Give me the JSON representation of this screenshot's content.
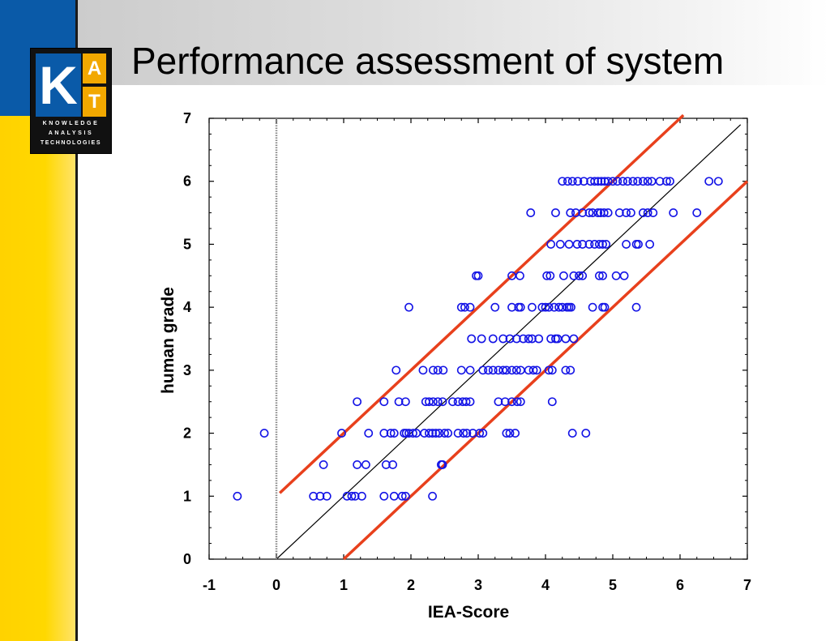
{
  "slide": {
    "title": "Performance assessment of system",
    "logo": {
      "letter_k": "K",
      "letter_a": "A",
      "letter_t": "T",
      "line1": "KNOWLEDGE",
      "line2": "ANALYSIS",
      "line3": "TECHNOLOGIES"
    },
    "colors": {
      "accent_blue": "#0a5aa8",
      "accent_yellow": "#ffd200",
      "marker_blue": "#1414e6",
      "band_red": "#e8401c"
    }
  },
  "chart_data": {
    "type": "scatter",
    "title": "",
    "xlabel": "IEA-Score",
    "ylabel": "human grade",
    "xlim": [
      -1,
      7
    ],
    "ylim": [
      0,
      7
    ],
    "xticks": [
      -1,
      0,
      1,
      2,
      3,
      4,
      5,
      6,
      7
    ],
    "yticks": [
      0,
      1,
      2,
      3,
      4,
      5,
      6,
      7
    ],
    "grid": false,
    "legend": "none",
    "reference_lines": [
      {
        "kind": "identity",
        "x": [
          0,
          6.9
        ],
        "y": [
          0,
          6.9
        ],
        "color": "#000000"
      },
      {
        "kind": "upper-band",
        "x": [
          0.05,
          6.05
        ],
        "y": [
          1.05,
          7.05
        ],
        "color": "#e8401c"
      },
      {
        "kind": "lower-band",
        "x": [
          1.0,
          7.0
        ],
        "y": [
          0.0,
          6.0
        ],
        "color": "#e8401c"
      },
      {
        "kind": "zero-marker",
        "x": [
          0,
          0
        ],
        "y": [
          0,
          7
        ],
        "color": "#888888"
      }
    ],
    "series": [
      {
        "marker": "open-circle",
        "color": "#1414e6",
        "points": [
          [
            -0.58,
            1
          ],
          [
            0.55,
            1
          ],
          [
            0.65,
            1
          ],
          [
            0.75,
            1
          ],
          [
            1.05,
            1
          ],
          [
            1.12,
            1
          ],
          [
            1.17,
            1
          ],
          [
            1.27,
            1
          ],
          [
            1.6,
            1
          ],
          [
            1.75,
            1
          ],
          [
            1.87,
            1
          ],
          [
            1.92,
            1
          ],
          [
            2.32,
            1
          ],
          [
            0.7,
            1.5
          ],
          [
            1.2,
            1.5
          ],
          [
            1.33,
            1.5
          ],
          [
            1.63,
            1.5
          ],
          [
            1.73,
            1.5
          ],
          [
            2.45,
            1.5
          ],
          [
            2.47,
            1.5
          ],
          [
            -0.18,
            2
          ],
          [
            0.97,
            2
          ],
          [
            1.37,
            2
          ],
          [
            1.6,
            2
          ],
          [
            1.7,
            2
          ],
          [
            1.75,
            2
          ],
          [
            1.9,
            2
          ],
          [
            1.93,
            2
          ],
          [
            1.97,
            2
          ],
          [
            2.03,
            2
          ],
          [
            2.08,
            2
          ],
          [
            2.2,
            2
          ],
          [
            2.27,
            2
          ],
          [
            2.32,
            2
          ],
          [
            2.37,
            2
          ],
          [
            2.42,
            2
          ],
          [
            2.5,
            2
          ],
          [
            2.55,
            2
          ],
          [
            2.7,
            2
          ],
          [
            2.78,
            2
          ],
          [
            2.83,
            2
          ],
          [
            2.92,
            2
          ],
          [
            3.02,
            2
          ],
          [
            3.07,
            2
          ],
          [
            3.42,
            2
          ],
          [
            3.47,
            2
          ],
          [
            3.55,
            2
          ],
          [
            4.4,
            2
          ],
          [
            4.6,
            2
          ],
          [
            1.2,
            2.5
          ],
          [
            1.6,
            2.5
          ],
          [
            1.82,
            2.5
          ],
          [
            1.92,
            2.5
          ],
          [
            2.22,
            2.5
          ],
          [
            2.27,
            2.5
          ],
          [
            2.33,
            2.5
          ],
          [
            2.4,
            2.5
          ],
          [
            2.47,
            2.5
          ],
          [
            2.62,
            2.5
          ],
          [
            2.7,
            2.5
          ],
          [
            2.77,
            2.5
          ],
          [
            2.82,
            2.5
          ],
          [
            2.88,
            2.5
          ],
          [
            3.3,
            2.5
          ],
          [
            3.4,
            2.5
          ],
          [
            3.5,
            2.5
          ],
          [
            3.58,
            2.5
          ],
          [
            3.63,
            2.5
          ],
          [
            4.1,
            2.5
          ],
          [
            1.78,
            3
          ],
          [
            2.18,
            3
          ],
          [
            2.33,
            3
          ],
          [
            2.4,
            3
          ],
          [
            2.48,
            3
          ],
          [
            2.75,
            3
          ],
          [
            2.88,
            3
          ],
          [
            3.07,
            3
          ],
          [
            3.15,
            3
          ],
          [
            3.22,
            3
          ],
          [
            3.3,
            3
          ],
          [
            3.37,
            3
          ],
          [
            3.42,
            3
          ],
          [
            3.5,
            3
          ],
          [
            3.57,
            3
          ],
          [
            3.63,
            3
          ],
          [
            3.75,
            3
          ],
          [
            3.82,
            3
          ],
          [
            3.87,
            3
          ],
          [
            4.05,
            3
          ],
          [
            4.1,
            3
          ],
          [
            4.3,
            3
          ],
          [
            4.37,
            3
          ],
          [
            2.9,
            3.5
          ],
          [
            3.05,
            3.5
          ],
          [
            3.22,
            3.5
          ],
          [
            3.37,
            3.5
          ],
          [
            3.47,
            3.5
          ],
          [
            3.57,
            3.5
          ],
          [
            3.67,
            3.5
          ],
          [
            3.75,
            3.5
          ],
          [
            3.8,
            3.5
          ],
          [
            3.9,
            3.5
          ],
          [
            4.08,
            3.5
          ],
          [
            4.15,
            3.5
          ],
          [
            4.18,
            3.5
          ],
          [
            4.3,
            3.5
          ],
          [
            4.42,
            3.5
          ],
          [
            1.97,
            4
          ],
          [
            2.75,
            4
          ],
          [
            2.8,
            4
          ],
          [
            2.88,
            4
          ],
          [
            3.25,
            4
          ],
          [
            3.5,
            4
          ],
          [
            3.6,
            4
          ],
          [
            3.63,
            4
          ],
          [
            3.8,
            4
          ],
          [
            3.95,
            4
          ],
          [
            4.0,
            4
          ],
          [
            4.05,
            4
          ],
          [
            4.13,
            4
          ],
          [
            4.2,
            4
          ],
          [
            4.25,
            4
          ],
          [
            4.32,
            4
          ],
          [
            4.35,
            4
          ],
          [
            4.38,
            4
          ],
          [
            4.7,
            4
          ],
          [
            4.85,
            4
          ],
          [
            4.88,
            4
          ],
          [
            5.35,
            4
          ],
          [
            2.97,
            4.5
          ],
          [
            3.0,
            4.5
          ],
          [
            3.5,
            4.5
          ],
          [
            3.62,
            4.5
          ],
          [
            4.02,
            4.5
          ],
          [
            4.07,
            4.5
          ],
          [
            4.27,
            4.5
          ],
          [
            4.42,
            4.5
          ],
          [
            4.5,
            4.5
          ],
          [
            4.55,
            4.5
          ],
          [
            4.8,
            4.5
          ],
          [
            4.85,
            4.5
          ],
          [
            5.05,
            4.5
          ],
          [
            5.17,
            4.5
          ],
          [
            4.08,
            5
          ],
          [
            4.22,
            5
          ],
          [
            4.35,
            5
          ],
          [
            4.47,
            5
          ],
          [
            4.55,
            5
          ],
          [
            4.65,
            5
          ],
          [
            4.73,
            5
          ],
          [
            4.8,
            5
          ],
          [
            4.85,
            5
          ],
          [
            4.9,
            5
          ],
          [
            5.2,
            5
          ],
          [
            5.35,
            5
          ],
          [
            5.38,
            5
          ],
          [
            5.55,
            5
          ],
          [
            3.78,
            5.5
          ],
          [
            4.15,
            5.5
          ],
          [
            4.37,
            5.5
          ],
          [
            4.45,
            5.5
          ],
          [
            4.55,
            5.5
          ],
          [
            4.65,
            5.5
          ],
          [
            4.7,
            5.5
          ],
          [
            4.78,
            5.5
          ],
          [
            4.82,
            5.5
          ],
          [
            4.87,
            5.5
          ],
          [
            4.93,
            5.5
          ],
          [
            5.1,
            5.5
          ],
          [
            5.2,
            5.5
          ],
          [
            5.27,
            5.5
          ],
          [
            5.45,
            5.5
          ],
          [
            5.52,
            5.5
          ],
          [
            5.6,
            5.5
          ],
          [
            5.9,
            5.5
          ],
          [
            6.25,
            5.5
          ],
          [
            4.25,
            6
          ],
          [
            4.33,
            6
          ],
          [
            4.4,
            6
          ],
          [
            4.48,
            6
          ],
          [
            4.57,
            6
          ],
          [
            4.67,
            6
          ],
          [
            4.73,
            6
          ],
          [
            4.78,
            6
          ],
          [
            4.83,
            6
          ],
          [
            4.88,
            6
          ],
          [
            4.93,
            6
          ],
          [
            5.0,
            6
          ],
          [
            5.07,
            6
          ],
          [
            5.15,
            6
          ],
          [
            5.22,
            6
          ],
          [
            5.3,
            6
          ],
          [
            5.37,
            6
          ],
          [
            5.45,
            6
          ],
          [
            5.52,
            6
          ],
          [
            5.58,
            6
          ],
          [
            5.7,
            6
          ],
          [
            5.8,
            6
          ],
          [
            5.85,
            6
          ],
          [
            6.43,
            6
          ],
          [
            6.57,
            6
          ]
        ]
      }
    ]
  }
}
